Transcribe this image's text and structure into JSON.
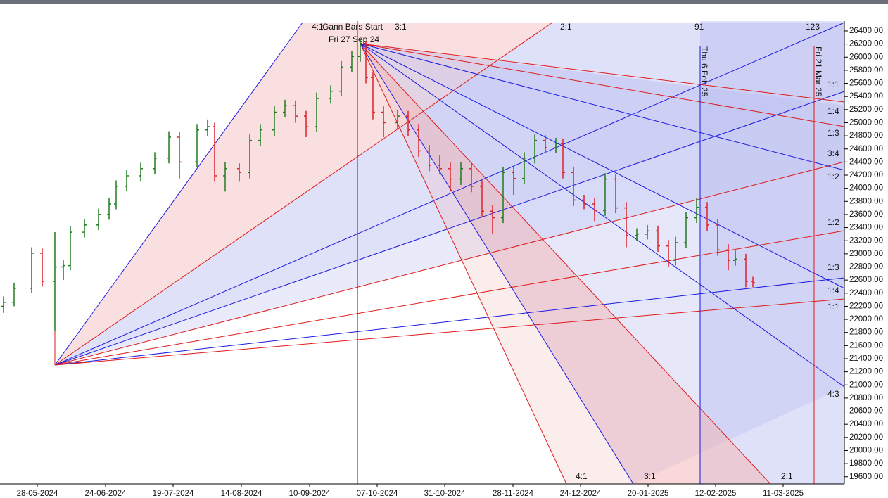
{
  "chart_data": {
    "type": "ohlc",
    "x": [
      1,
      4,
      9,
      12,
      15.6,
      18,
      20,
      24,
      28,
      31,
      33,
      36,
      40,
      44,
      48,
      51,
      56,
      59,
      61,
      64,
      68,
      71,
      74,
      78,
      81,
      84,
      87,
      90,
      94,
      97,
      100,
      102.4,
      104,
      106,
      109,
      113,
      116,
      119,
      122,
      125,
      128,
      131,
      134,
      137,
      140,
      143,
      146,
      149,
      152,
      155,
      158,
      160,
      163,
      166,
      169,
      172,
      175,
      178,
      181,
      184,
      187,
      190,
      192,
      195,
      198,
      201,
      204,
      207,
      209,
      212,
      214
    ],
    "open": [
      22200,
      22260,
      22475,
      23010,
      22580,
      22800,
      22820,
      23330,
      23440,
      23600,
      23760,
      24030,
      24190,
      24300,
      24460,
      24780,
      24400,
      24890,
      24940,
      24190,
      24300,
      24240,
      24730,
      24890,
      25160,
      25260,
      25100,
      24940,
      25370,
      25480,
      25850,
      26010,
      26210,
      25690,
      25160,
      25000,
      25100,
      24890,
      24570,
      24350,
      24300,
      24140,
      24300,
      24030,
      23650,
      23550,
      24240,
      24150,
      24460,
      24730,
      24620,
      24680,
      24240,
      23820,
      23760,
      23660,
      24140,
      23700,
      23280,
      23300,
      23350,
      23120,
      22900,
      23170,
      23550,
      23710,
      23440,
      23060,
      22900,
      22920,
      22580
    ],
    "high": [
      22350,
      22560,
      23100,
      23080,
      23330,
      22900,
      23420,
      23530,
      23690,
      23850,
      24120,
      24280,
      24390,
      24550,
      24870,
      24860,
      24980,
      25050,
      25000,
      24400,
      24380,
      24820,
      24980,
      25250,
      25350,
      25340,
      25180,
      25460,
      25570,
      25940,
      26100,
      26280,
      26250,
      25780,
      25250,
      25200,
      25180,
      24980,
      24660,
      24500,
      24390,
      24400,
      24390,
      24120,
      23750,
      24330,
      24330,
      24550,
      24820,
      24810,
      24770,
      24760,
      24330,
      23900,
      23850,
      24230,
      24220,
      23790,
      23390,
      23440,
      23430,
      23210,
      23260,
      23640,
      23850,
      23790,
      23530,
      23150,
      23050,
      23000,
      22650
    ],
    "low": [
      22100,
      22200,
      22400,
      22500,
      21830,
      22600,
      22750,
      23250,
      23360,
      23520,
      23680,
      23950,
      24100,
      24220,
      24380,
      24150,
      24320,
      24800,
      24100,
      23950,
      24100,
      24150,
      24650,
      24800,
      25080,
      25000,
      24780,
      24860,
      25290,
      25400,
      25770,
      25930,
      25600,
      25050,
      24780,
      24900,
      24800,
      24480,
      24260,
      24210,
      23950,
      24050,
      23940,
      23560,
      23300,
      23470,
      23900,
      24070,
      24380,
      24540,
      24540,
      24150,
      23730,
      23680,
      23500,
      23580,
      23620,
      23100,
      23200,
      23220,
      23030,
      22800,
      22820,
      23090,
      23470,
      23350,
      22970,
      22750,
      22820,
      22490,
      22490
    ],
    "close": [
      22260,
      22475,
      23010,
      22580,
      22800,
      22820,
      23330,
      23440,
      23600,
      23760,
      24030,
      24190,
      24300,
      24460,
      24780,
      24400,
      24890,
      24940,
      24190,
      24300,
      24240,
      24730,
      24890,
      25160,
      25260,
      25100,
      24940,
      25370,
      25480,
      25850,
      26010,
      26210,
      25690,
      25160,
      25000,
      25100,
      24890,
      24570,
      24350,
      24300,
      24140,
      24300,
      24030,
      23650,
      23550,
      24240,
      24150,
      24460,
      24730,
      24620,
      24680,
      24240,
      23820,
      23760,
      23660,
      24140,
      23700,
      23280,
      23300,
      23350,
      23120,
      22900,
      23170,
      23550,
      23710,
      23440,
      23060,
      22900,
      22920,
      22580,
      22560
    ],
    "up_color": "#1f7a1f",
    "down_color": "#e0202a",
    "xlim": [
      0,
      240
    ],
    "ylim": [
      19490,
      26550
    ],
    "xticks": [
      {
        "value": 10.6,
        "label": "28-05-2024"
      },
      {
        "value": 30,
        "label": "24-06-2024"
      },
      {
        "value": 49.2,
        "label": "19-07-2024"
      },
      {
        "value": 68.6,
        "label": "14-08-2024"
      },
      {
        "value": 88,
        "label": "10-09-2024"
      },
      {
        "value": 107.2,
        "label": "07-10-2024"
      },
      {
        "value": 126.4,
        "label": "31-10-2024"
      },
      {
        "value": 145.8,
        "label": "28-11-2024"
      },
      {
        "value": 165,
        "label": "24-12-2024"
      },
      {
        "value": 184.2,
        "label": "20-01-2025"
      },
      {
        "value": 203.4,
        "label": "12-02-2025"
      },
      {
        "value": 222.6,
        "label": "11-03-2025"
      }
    ],
    "yticks": [
      {
        "value": 19600,
        "label": "19600.00"
      },
      {
        "value": 19800,
        "label": "19800.00"
      },
      {
        "value": 20000,
        "label": "20000.00"
      },
      {
        "value": 20200,
        "label": "20200.00"
      },
      {
        "value": 20400,
        "label": "20400.00"
      },
      {
        "value": 20600,
        "label": "20600.00"
      },
      {
        "value": 20800,
        "label": "20800.00"
      },
      {
        "value": 21000,
        "label": "21000.00"
      },
      {
        "value": 21200,
        "label": "21200.00"
      },
      {
        "value": 21400,
        "label": "21400.00"
      },
      {
        "value": 21600,
        "label": "21600.00"
      },
      {
        "value": 21800,
        "label": "21800.00"
      },
      {
        "value": 22000,
        "label": "22000.00"
      },
      {
        "value": 22200,
        "label": "22200.00"
      },
      {
        "value": 22400,
        "label": "22400.00"
      },
      {
        "value": 22600,
        "label": "22600.00"
      },
      {
        "value": 22800,
        "label": "22800.00"
      },
      {
        "value": 23000,
        "label": "23000.00"
      },
      {
        "value": 23200,
        "label": "23200.00"
      },
      {
        "value": 23400,
        "label": "23400.00"
      },
      {
        "value": 23600,
        "label": "23600.00"
      },
      {
        "value": 23800,
        "label": "23800.00"
      },
      {
        "value": 24000,
        "label": "24000.00"
      },
      {
        "value": 24200,
        "label": "24200.00"
      },
      {
        "value": 24400,
        "label": "24400.00"
      },
      {
        "value": 24600,
        "label": "24600.00"
      },
      {
        "value": 24800,
        "label": "24800.00"
      },
      {
        "value": 25000,
        "label": "25000.00"
      },
      {
        "value": 25200,
        "label": "25200.00"
      },
      {
        "value": 25400,
        "label": "25400.00"
      },
      {
        "value": 25600,
        "label": "25600.00"
      },
      {
        "value": 25800,
        "label": "25800.00"
      },
      {
        "value": 26000,
        "label": "26000.00"
      },
      {
        "value": 26200,
        "label": "26200.00"
      },
      {
        "value": 26400,
        "label": "26400.00"
      }
    ],
    "annotations": [
      "4:1",
      "Gann Bars Start",
      "3:1",
      "Fri 27 Sep 24",
      "2:1",
      "91",
      "123",
      "Thu 6 Feb 25",
      "Fri 21 Mar 25",
      "1:1",
      "1:4",
      "1:3",
      "3:4",
      "1:2",
      "1:2",
      "1:3",
      "1:4",
      "1:1",
      "4:3",
      "4:1",
      "3:1",
      "2:1"
    ]
  }
}
